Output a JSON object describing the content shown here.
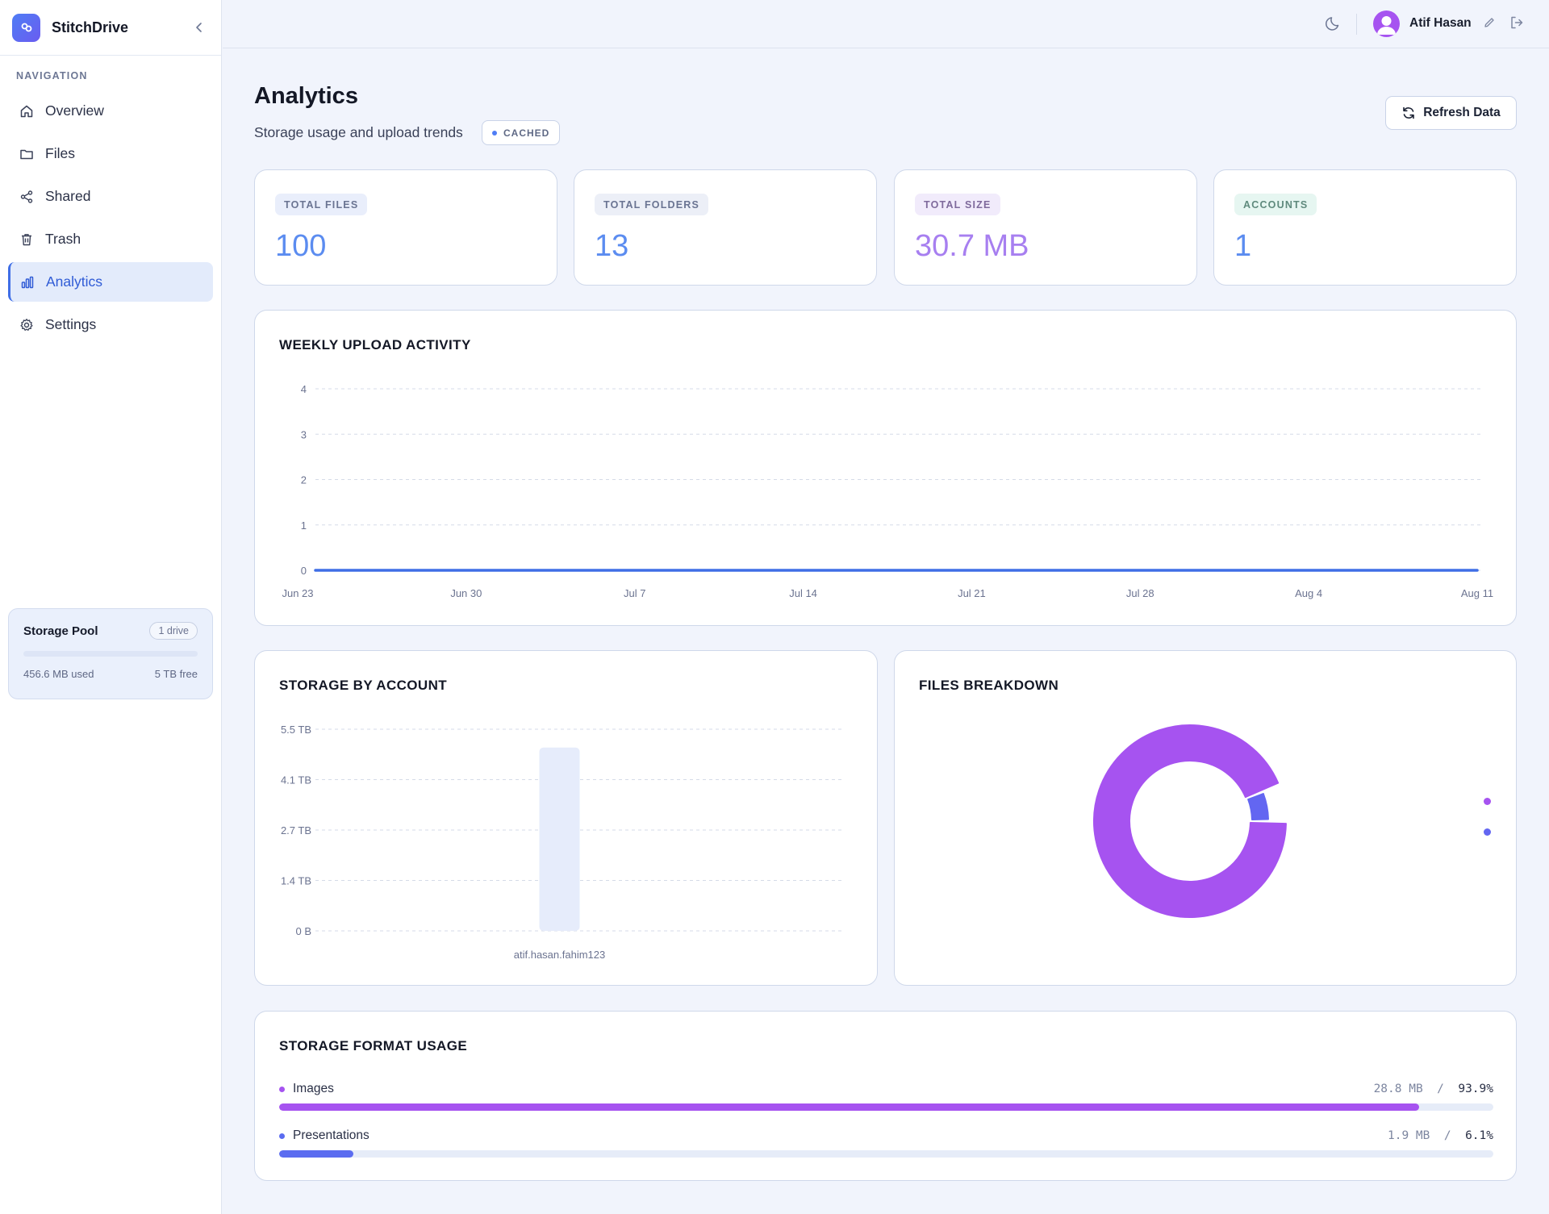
{
  "app": {
    "name": "StitchDrive"
  },
  "sidebar": {
    "heading": "NAVIGATION",
    "items": [
      {
        "label": "Overview",
        "icon": "home-icon"
      },
      {
        "label": "Files",
        "icon": "folder-icon"
      },
      {
        "label": "Shared",
        "icon": "share-icon"
      },
      {
        "label": "Trash",
        "icon": "trash-icon"
      },
      {
        "label": "Analytics",
        "icon": "bar-chart-icon",
        "active": true
      },
      {
        "label": "Settings",
        "icon": "gear-icon"
      }
    ],
    "pool": {
      "title": "Storage Pool",
      "badge": "1 drive",
      "used": "456.6 MB used",
      "free": "5 TB free",
      "fill_fraction": 0.0001
    }
  },
  "user": {
    "name": "Atif Hasan"
  },
  "header": {
    "title": "Analytics",
    "subtitle": "Storage usage and upload trends",
    "badge": "CACHED",
    "refresh_label": "Refresh Data"
  },
  "stats": [
    {
      "label": "TOTAL FILES",
      "value": "100",
      "color": "#5b8cf0",
      "label_bg": "#e9eefb"
    },
    {
      "label": "TOTAL FOLDERS",
      "value": "13",
      "color": "#5b8cf0",
      "label_bg": "#eceff7"
    },
    {
      "label": "TOTAL SIZE",
      "value": "30.7 MB",
      "color": "#a77ff0",
      "label_bg": "#f1ebfb"
    },
    {
      "label": "ACCOUNTS",
      "value": "1",
      "color": "#5b8cf0",
      "label_bg": "#e6f6f1"
    }
  ],
  "weekly": {
    "title": "WEEKLY UPLOAD ACTIVITY",
    "chart_data": {
      "type": "line",
      "x": [
        "Jun 23",
        "Jun 30",
        "Jul 7",
        "Jul 14",
        "Jul 21",
        "Jul 28",
        "Aug 4",
        "Aug 11"
      ],
      "y_ticks": [
        "0",
        "1",
        "2",
        "3",
        "4"
      ],
      "ylim": [
        0,
        4
      ],
      "values": [
        0,
        0,
        0,
        0,
        0,
        0,
        0,
        0
      ],
      "color": "#3f6ee6",
      "grid": true
    }
  },
  "by_account": {
    "title": "STORAGE BY ACCOUNT",
    "chart_data": {
      "type": "bar",
      "categories": [
        "atif.hasan.fahim123"
      ],
      "values": [
        5
      ],
      "value_unit": "TB",
      "y_ticks": [
        "0 B",
        "1.4 TB",
        "2.7 TB",
        "4.1 TB",
        "5.5 TB"
      ],
      "ylim": [
        0,
        5.5
      ],
      "color": "#e6ecfb",
      "grid": true
    }
  },
  "breakdown": {
    "title": "FILES BREAKDOWN",
    "chart_data": {
      "type": "pie",
      "slices": [
        {
          "value": 93.9,
          "color": "#a653f0"
        },
        {
          "value": 6.1,
          "color": "#6366f1"
        }
      ],
      "legend": "right"
    }
  },
  "formats": {
    "title": "STORAGE FORMAT USAGE",
    "sep": "/",
    "items": [
      {
        "name": "Images",
        "size": "28.8 MB",
        "pct": "93.9%",
        "fraction": 0.939,
        "color": "#a653f0"
      },
      {
        "name": "Presentations",
        "size": "1.9 MB",
        "pct": "6.1%",
        "fraction": 0.061,
        "color": "#5b6cf0"
      }
    ]
  }
}
